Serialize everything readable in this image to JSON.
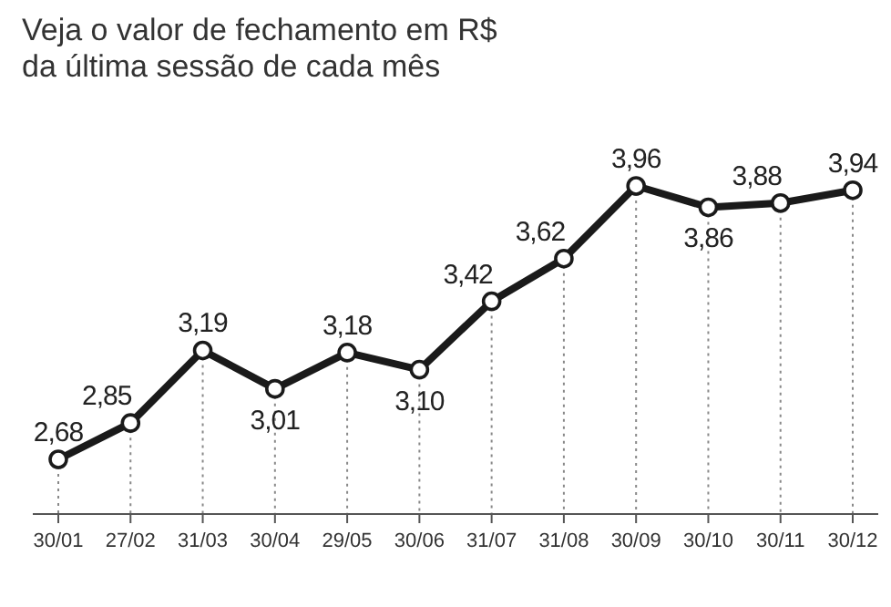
{
  "chart_data": {
    "type": "line",
    "title": "Veja o valor de fechamento em R$\nda última sessão de cada mês",
    "categories": [
      "30/01",
      "27/02",
      "31/03",
      "30/04",
      "29/05",
      "30/06",
      "31/07",
      "31/08",
      "30/09",
      "30/10",
      "30/11",
      "30/12"
    ],
    "series": [
      {
        "color": "#1a1a1a",
        "values": [
          2.68,
          2.85,
          3.19,
          3.01,
          3.18,
          3.1,
          3.42,
          3.62,
          3.96,
          3.86,
          3.88,
          3.94
        ],
        "value_labels": [
          "2,68",
          "2,85",
          "3,19",
          "3,01",
          "3,18",
          "3,10",
          "3,42",
          "3,62",
          "3,96",
          "3,86",
          "3,88",
          "3,94"
        ]
      }
    ],
    "marker": "circle",
    "grid": "x",
    "tick_labels": "x"
  }
}
